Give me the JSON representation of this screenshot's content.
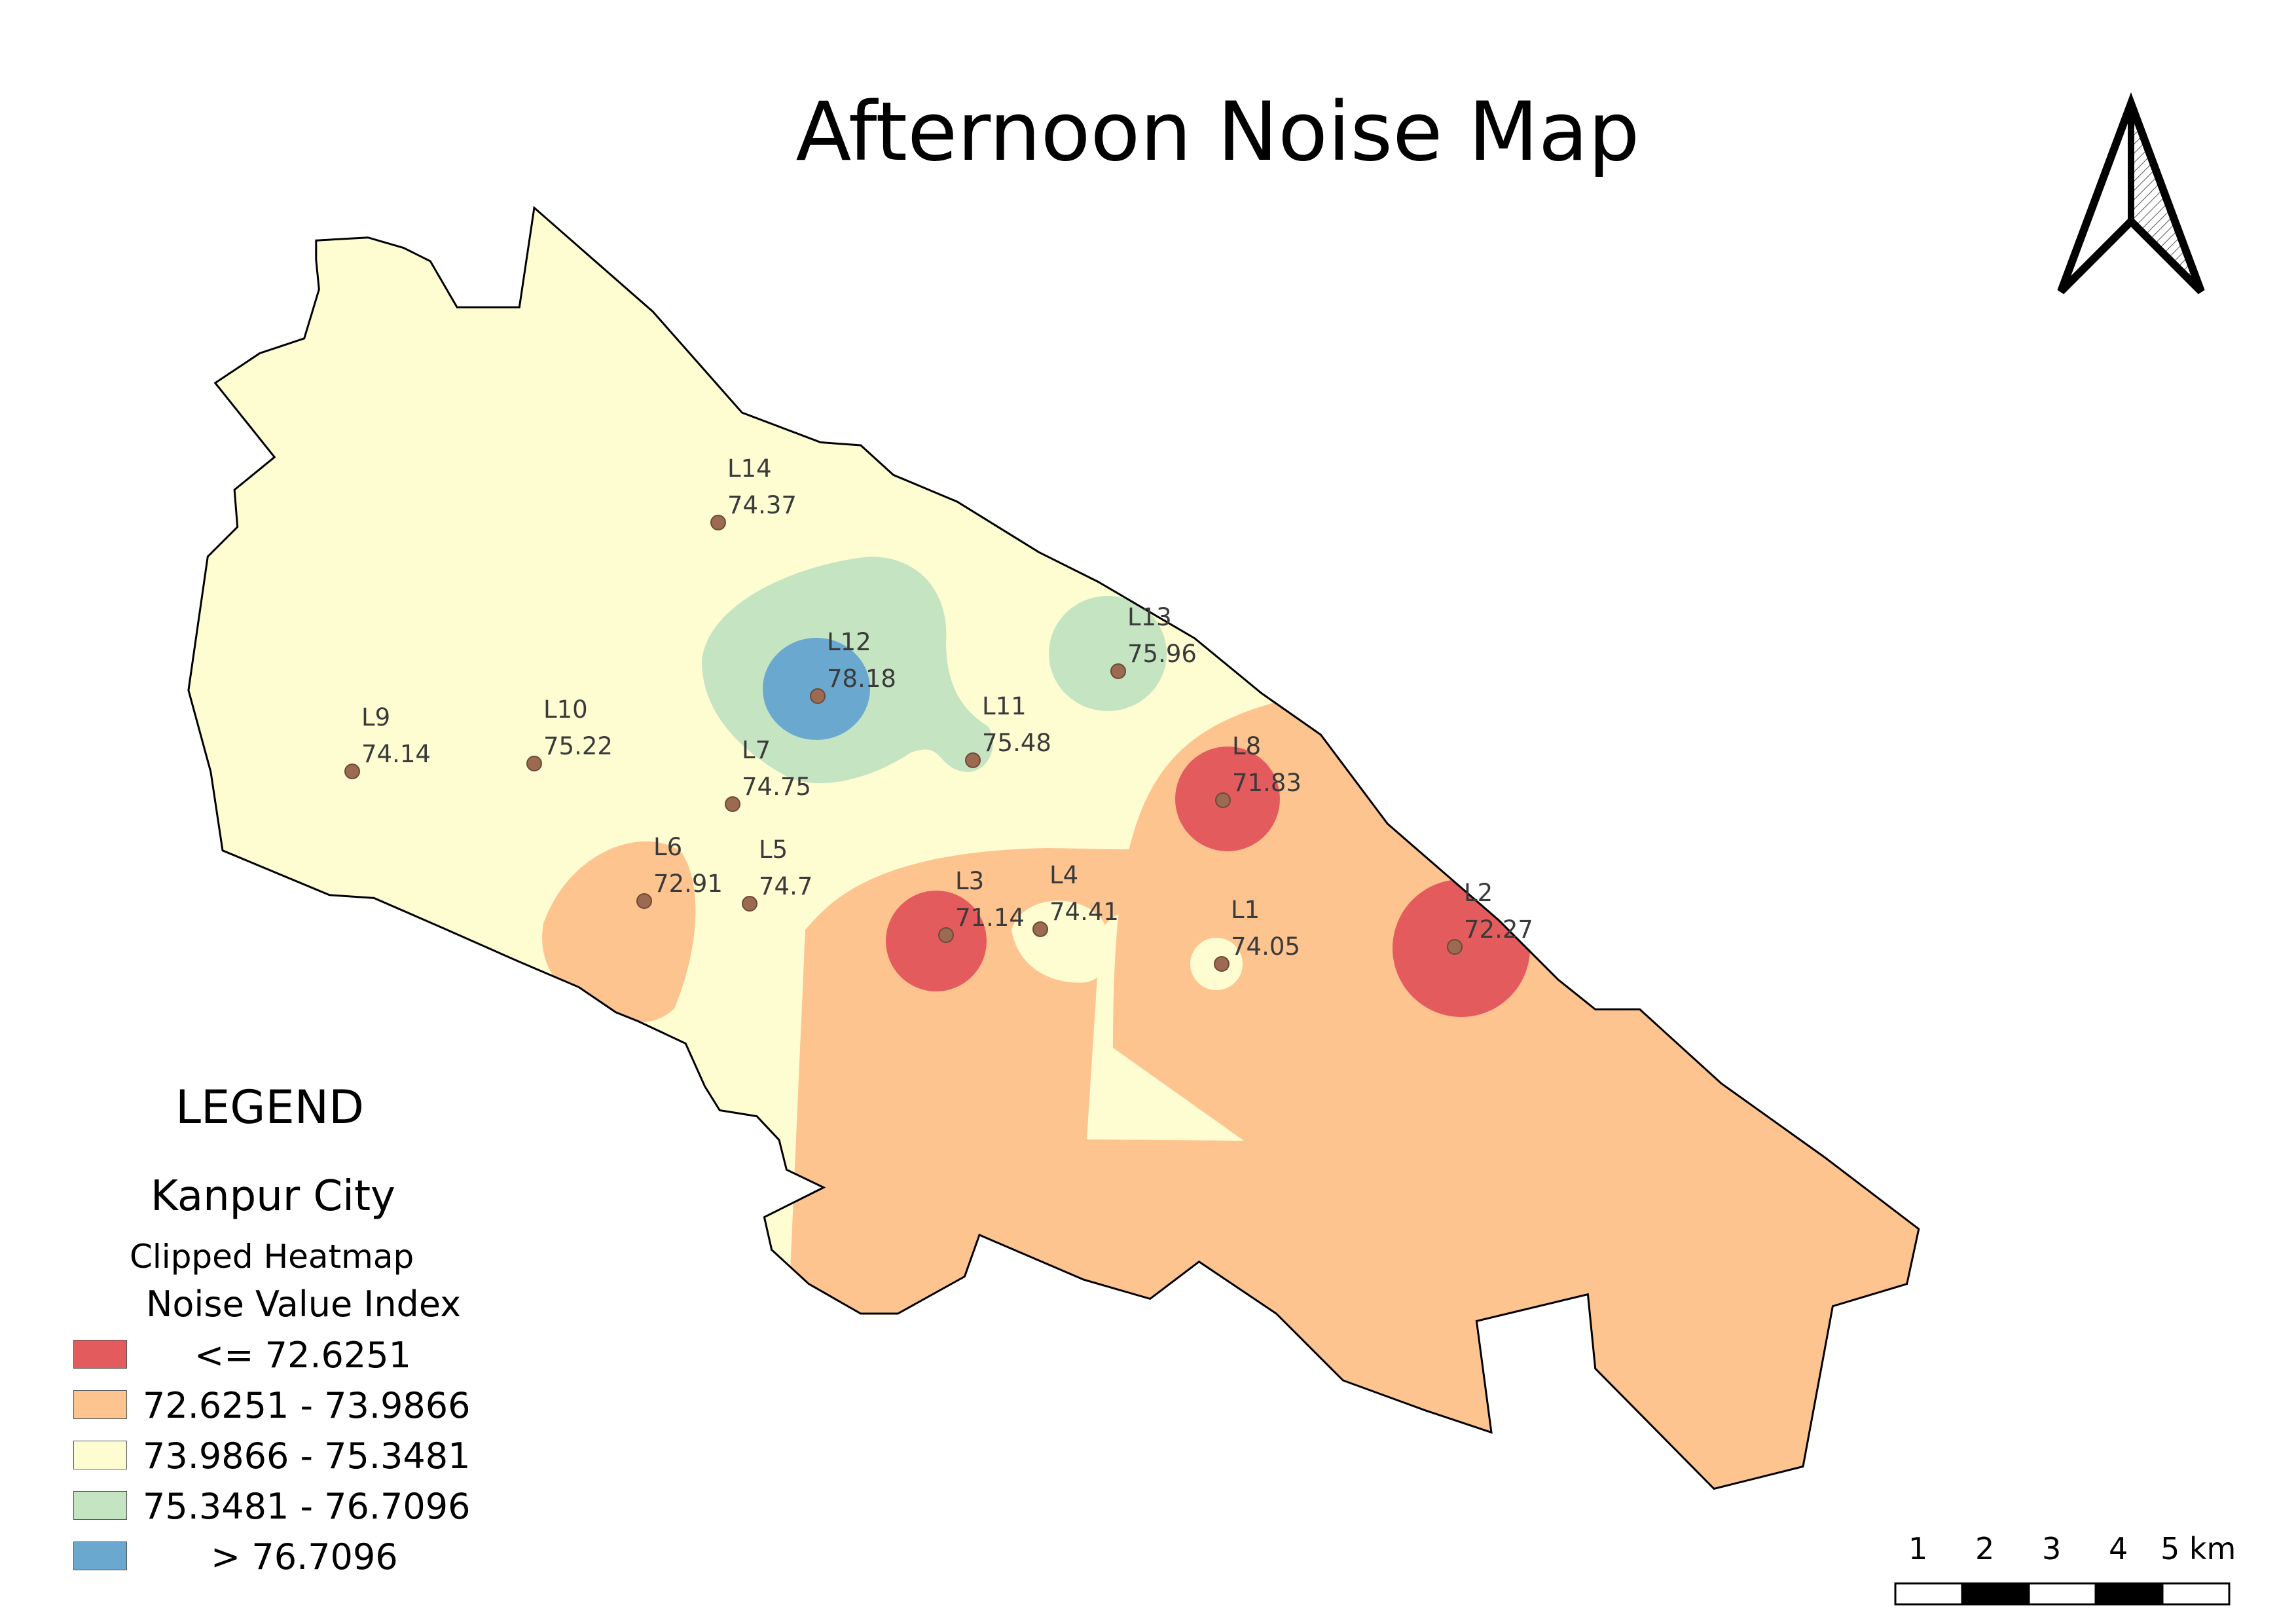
{
  "title": "Afternoon Noise Map",
  "colors": {
    "class_1": "#e45b5e",
    "class_2": "#fdc490",
    "class_3": "#fefdd2",
    "class_4": "#c5e4c2",
    "class_5": "#6aa8d0",
    "point_fill": "#9b6a50",
    "outline": "#000000"
  },
  "legend": {
    "heading": "LEGEND",
    "layer": "Kanpur City",
    "sublayer": "Clipped Heatmap",
    "field": "Noise Value Index",
    "classes": [
      {
        "label": "<= 72.6251",
        "color": "#e45b5e"
      },
      {
        "label": "72.6251 - 73.9866",
        "color": "#fdc490"
      },
      {
        "label": "73.9866 - 75.3481",
        "color": "#fefdd2"
      },
      {
        "label": "75.3481 - 76.7096",
        "color": "#c5e4c2"
      },
      {
        "label": "> 76.7096",
        "color": "#6aa8d0"
      }
    ]
  },
  "points": [
    {
      "id": "L1",
      "value": "74.05"
    },
    {
      "id": "L2",
      "value": "72.27"
    },
    {
      "id": "L3",
      "value": "71.14"
    },
    {
      "id": "L4",
      "value": "74.41"
    },
    {
      "id": "L5",
      "value": "74.7"
    },
    {
      "id": "L6",
      "value": "72.91"
    },
    {
      "id": "L7",
      "value": "74.75"
    },
    {
      "id": "L8",
      "value": "71.83"
    },
    {
      "id": "L9",
      "value": "74.14"
    },
    {
      "id": "L10",
      "value": "75.22"
    },
    {
      "id": "L11",
      "value": "75.48"
    },
    {
      "id": "L12",
      "value": "78.18"
    },
    {
      "id": "L13",
      "value": "75.96"
    },
    {
      "id": "L14",
      "value": "74.37"
    }
  ],
  "scale_bar": {
    "labels": [
      "1",
      "2",
      "3",
      "4",
      "5 km"
    ]
  },
  "north_arrow": {
    "icon": "north-arrow-icon"
  }
}
